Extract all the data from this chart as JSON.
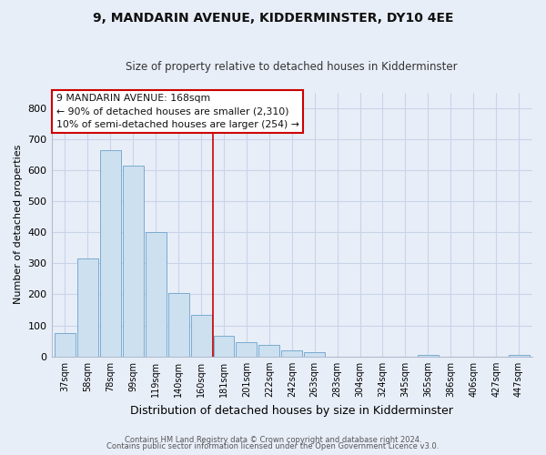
{
  "title": "9, MANDARIN AVENUE, KIDDERMINSTER, DY10 4EE",
  "subtitle": "Size of property relative to detached houses in Kidderminster",
  "xlabel": "Distribution of detached houses by size in Kidderminster",
  "ylabel": "Number of detached properties",
  "categories": [
    "37sqm",
    "58sqm",
    "78sqm",
    "99sqm",
    "119sqm",
    "140sqm",
    "160sqm",
    "181sqm",
    "201sqm",
    "222sqm",
    "242sqm",
    "263sqm",
    "283sqm",
    "304sqm",
    "324sqm",
    "345sqm",
    "365sqm",
    "386sqm",
    "406sqm",
    "427sqm",
    "447sqm"
  ],
  "values": [
    75,
    315,
    665,
    615,
    400,
    205,
    135,
    68,
    47,
    38,
    20,
    15,
    0,
    0,
    0,
    0,
    5,
    0,
    0,
    0,
    5
  ],
  "bar_color": "#cce0f0",
  "bar_edge_color": "#7aabcf",
  "vline_color": "#cc0000",
  "vline_x": 6.5,
  "ylim": [
    0,
    850
  ],
  "yticks": [
    0,
    100,
    200,
    300,
    400,
    500,
    600,
    700,
    800
  ],
  "annotation_title": "9 MANDARIN AVENUE: 168sqm",
  "annotation_line2": "← 90% of detached houses are smaller (2,310)",
  "annotation_line3": "10% of semi-detached houses are larger (254) →",
  "annotation_box_facecolor": "#ffffff",
  "annotation_box_edgecolor": "#cc0000",
  "grid_color": "#c8d4e8",
  "background_color": "#e8eef8",
  "plot_bg_color": "#e8eef8",
  "footer_line1": "Contains HM Land Registry data © Crown copyright and database right 2024.",
  "footer_line2": "Contains public sector information licensed under the Open Government Licence v3.0.",
  "title_fontsize": 10,
  "subtitle_fontsize": 8.5,
  "ylabel_fontsize": 8,
  "xlabel_fontsize": 9
}
